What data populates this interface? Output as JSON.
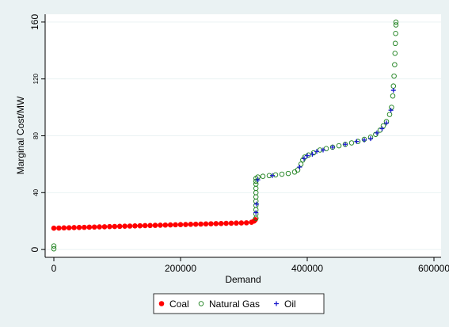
{
  "chart_data": {
    "type": "scatter",
    "x_label": "Demand",
    "y_label": "Marginal Cost/MW",
    "xlim": [
      -13750,
      611250
    ],
    "xticks": [
      0,
      200000,
      400000,
      600000
    ],
    "ylim": [
      -5.5,
      165.5
    ],
    "yticks": [
      0,
      40,
      80,
      120,
      160
    ],
    "grid": true,
    "legend": "bottom",
    "series": [
      {
        "name": "Coal",
        "color": "#ff0000",
        "marker": "filled-circle",
        "x": [
          0,
          8000,
          16000,
          24000,
          32000,
          40000,
          48000,
          56000,
          64000,
          72000,
          80000,
          88000,
          96000,
          104000,
          112000,
          120000,
          128000,
          136000,
          144000,
          152000,
          160000,
          168000,
          176000,
          184000,
          192000,
          200000,
          208000,
          216000,
          224000,
          232000,
          240000,
          248000,
          256000,
          264000,
          272000,
          280000,
          288000,
          296000,
          304000,
          312000,
          316000,
          318000
        ],
        "values": [
          15.0,
          15.1,
          15.2,
          15.3,
          15.4,
          15.5,
          15.6,
          15.7,
          15.8,
          15.9,
          16.0,
          16.1,
          16.2,
          16.3,
          16.4,
          16.5,
          16.6,
          16.7,
          16.8,
          16.9,
          17.0,
          17.1,
          17.2,
          17.3,
          17.4,
          17.5,
          17.6,
          17.7,
          17.8,
          17.9,
          18.0,
          18.1,
          18.2,
          18.3,
          18.4,
          18.5,
          18.6,
          18.7,
          18.8,
          19.2,
          20.0,
          21.0
        ]
      },
      {
        "name": "Natural Gas",
        "color": "#1a7f1a",
        "marker": "hollow-circle",
        "x": [
          0,
          0,
          319000,
          319000,
          319000,
          319000,
          319000,
          319000,
          319000,
          319000,
          319000,
          319000,
          319000,
          322000,
          330000,
          340000,
          350000,
          360000,
          370000,
          380000,
          385000,
          390000,
          393000,
          396000,
          402000,
          410000,
          420000,
          430000,
          440000,
          450000,
          460000,
          470000,
          480000,
          490000,
          500000,
          508000,
          515000,
          520000,
          525000,
          530000,
          533000,
          535000,
          536000,
          537000,
          538000,
          538500,
          539000,
          539500,
          540000,
          540000
        ],
        "values": [
          0.5,
          2.5,
          22,
          25,
          28,
          31,
          34,
          37,
          40,
          43,
          46,
          48,
          50,
          51,
          51.5,
          52,
          52.5,
          53,
          53.5,
          54.5,
          56,
          60,
          63,
          65,
          66.5,
          68,
          70,
          71,
          72,
          73,
          74,
          75,
          76,
          77.5,
          79,
          81,
          84,
          87,
          90,
          95,
          100,
          108,
          115,
          122,
          130,
          138,
          145,
          152,
          158,
          160
        ]
      },
      {
        "name": "Oil",
        "color": "#1a1acd",
        "marker": "plus",
        "x": [
          319000,
          320000,
          322000,
          345000,
          388000,
          395000,
          400000,
          408000,
          415000,
          425000,
          440000,
          460000,
          478000,
          490000,
          500000,
          510000,
          518000,
          525000,
          532000,
          536000
        ],
        "values": [
          26,
          32,
          49,
          52,
          58,
          64,
          66,
          67,
          69,
          70,
          72,
          74,
          76,
          77,
          78,
          82,
          85,
          89,
          98,
          112
        ]
      }
    ]
  }
}
